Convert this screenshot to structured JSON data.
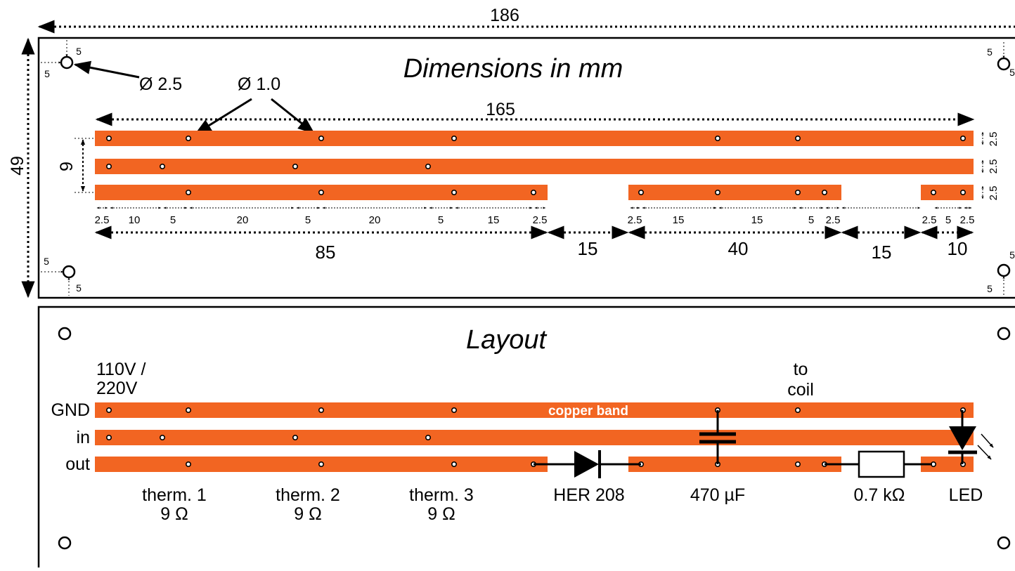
{
  "dimensions_panel": {
    "title": "Dimensions in mm",
    "total_width": "186",
    "total_height": "49",
    "strip_length": "165",
    "row_pitch": "9",
    "mount_hole_diameter": "Ø 2.5",
    "drill_hole_diameter": "Ø 1.0",
    "corner_offset": "5",
    "strip_width": "2.5",
    "small_dims": [
      "2.5",
      "10",
      "5",
      "20",
      "5",
      "20",
      "5",
      "15",
      "2.5",
      "2.5",
      "15",
      "15",
      "5",
      "2.5",
      "2.5",
      "5",
      "2.5"
    ],
    "segment_dims": [
      "85",
      "15",
      "40",
      "15",
      "10"
    ]
  },
  "layout_panel": {
    "title": "Layout",
    "supply_label_line1": "110V /",
    "supply_label_line2": "220V",
    "coil_label_line1": "to",
    "coil_label_line2": "coil",
    "band_label": "copper band",
    "rows": [
      "GND",
      "in",
      "out"
    ],
    "components": [
      {
        "name": "therm. 1",
        "value": "9 Ω"
      },
      {
        "name": "therm. 2",
        "value": "9 Ω"
      },
      {
        "name": "therm. 3",
        "value": "9 Ω"
      },
      {
        "name": "HER 208",
        "value": ""
      },
      {
        "name": "470 µF",
        "value": ""
      },
      {
        "name": "0.7 kΩ",
        "value": ""
      },
      {
        "name": "LED",
        "value": ""
      }
    ]
  },
  "colors": {
    "copper": "#f26522",
    "line": "#000000"
  }
}
